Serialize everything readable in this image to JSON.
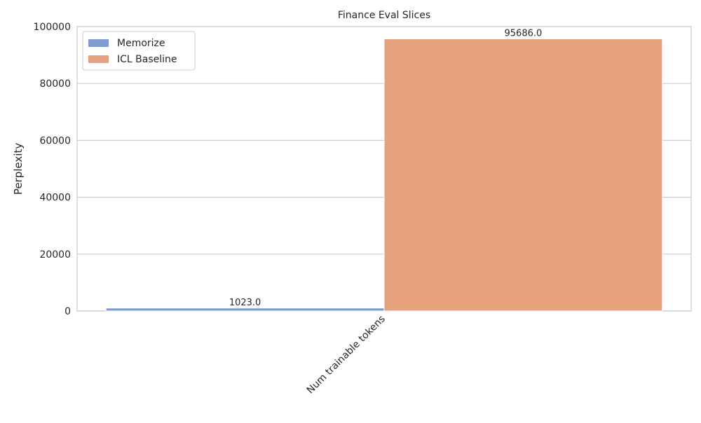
{
  "chart_data": {
    "type": "bar",
    "title": "Finance Eval Slices",
    "xlabel": "",
    "ylabel": "Perplexity",
    "categories": [
      "Num trainable tokens"
    ],
    "series": [
      {
        "name": "Memorize",
        "values": [
          1023.0
        ],
        "color": "#7f9bd0",
        "value_labels": [
          "1023.0"
        ]
      },
      {
        "name": "ICL Baseline",
        "values": [
          95686.0
        ],
        "color": "#e6a27f",
        "value_labels": [
          "95686.0"
        ]
      }
    ],
    "ylim": [
      0,
      100000
    ],
    "yticks": [
      0,
      20000,
      40000,
      60000,
      80000,
      100000
    ],
    "ytick_labels": [
      "0",
      "20000",
      "40000",
      "60000",
      "80000",
      "100000"
    ],
    "grid": true,
    "legend_position": "top-left"
  }
}
